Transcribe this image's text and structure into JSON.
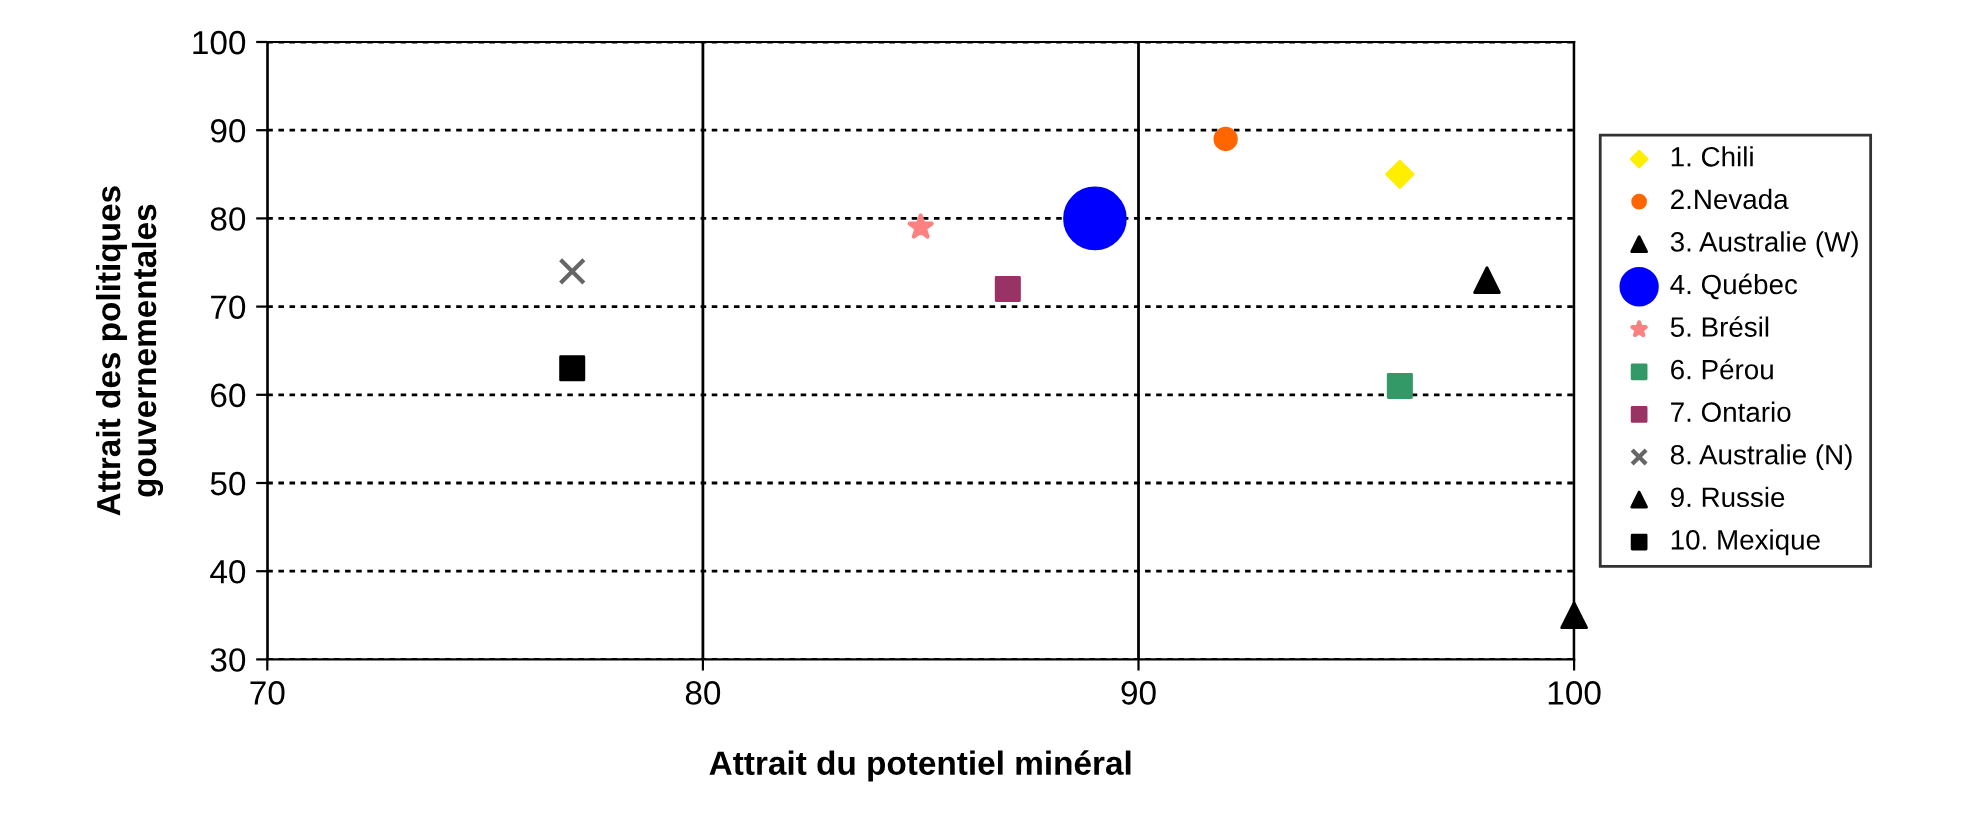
{
  "chart_data": {
    "type": "scatter",
    "xlabel": "Attrait du potentiel minéral",
    "ylabel": "Attrait des politiques\ngouvernementales",
    "xlim": [
      70,
      100
    ],
    "xticks": [
      70,
      80,
      90,
      100
    ],
    "ylim": [
      30,
      100
    ],
    "yticks": [
      30,
      40,
      50,
      60,
      70,
      80,
      90,
      100
    ],
    "grid": true,
    "legend": "right",
    "series": [
      {
        "name": "1. Chili",
        "color": "#ffee00",
        "marker": "diamond",
        "x": [
          96
        ],
        "values": [
          85
        ]
      },
      {
        "name": "2.Nevada",
        "color": "#ff6600",
        "marker": "circle",
        "x": [
          92
        ],
        "values": [
          89
        ]
      },
      {
        "name": "3. Australie (W)",
        "color": "#000000",
        "marker": "triangle",
        "x": [
          98
        ],
        "values": [
          73
        ]
      },
      {
        "name": "4. Québec",
        "color": "#0000ff",
        "marker": "circle",
        "sizes": [
          1
        ],
        "x": [
          89
        ],
        "values": [
          80
        ]
      },
      {
        "name": "5. Brésil",
        "color": "#ff8080",
        "marker": "star",
        "x": [
          85
        ],
        "values": [
          79
        ]
      },
      {
        "name": "6. Pérou",
        "color": "#339966",
        "marker": "square",
        "x": [
          96
        ],
        "values": [
          61
        ]
      },
      {
        "name": "7. Ontario",
        "color": "#993366",
        "marker": "square",
        "x": [
          87
        ],
        "values": [
          72
        ]
      },
      {
        "name": "8. Australie (N)",
        "color": "#666666",
        "marker": "cross",
        "x": [
          77
        ],
        "values": [
          74
        ]
      },
      {
        "name": "9. Russie",
        "color": "#000000",
        "marker": "triangle",
        "x": [
          100
        ],
        "values": [
          35
        ]
      },
      {
        "name": "10. Mexique",
        "color": "#000000",
        "marker": "square",
        "x": [
          77
        ],
        "values": [
          63
        ]
      }
    ]
  }
}
